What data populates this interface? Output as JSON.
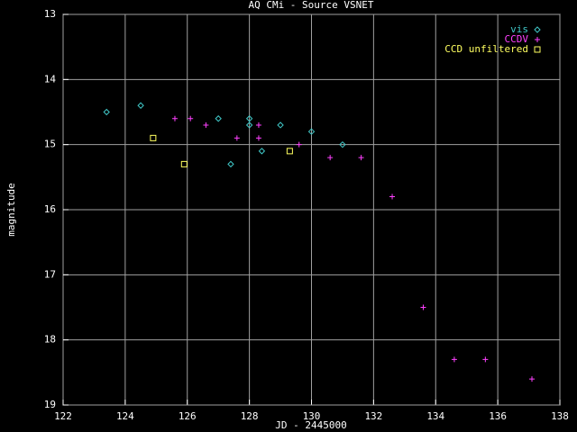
{
  "chart_data": {
    "type": "scatter",
    "title": "AQ CMi - Source VSNET",
    "x_label": "JD - 2445000",
    "y_label": "magnitude",
    "xlim": [
      122,
      138
    ],
    "xticks": [
      122,
      124,
      126,
      128,
      130,
      132,
      134,
      136,
      138
    ],
    "ylim": [
      13,
      19
    ],
    "yticks": [
      13,
      14,
      15,
      16,
      17,
      18,
      19
    ],
    "y_reversed": true,
    "grid": true,
    "legend": "top-right",
    "series": [
      {
        "name": "vis",
        "color": "#40c8c8",
        "marker": "diamond",
        "x": [
          123.4,
          124.5,
          127.0,
          128.0,
          128.0,
          127.4,
          128.4,
          129.0,
          130.0,
          131.0
        ],
        "values": [
          14.5,
          14.4,
          14.6,
          14.6,
          14.7,
          15.3,
          15.1,
          14.7,
          14.8,
          15.0
        ]
      },
      {
        "name": "CCDV",
        "color": "#ff40ff",
        "marker": "plus",
        "x": [
          125.6,
          126.1,
          126.6,
          127.6,
          128.3,
          128.3,
          129.6,
          130.6,
          131.6,
          132.6,
          133.6,
          134.6,
          135.6,
          137.1
        ],
        "values": [
          14.6,
          14.6,
          14.7,
          14.9,
          14.7,
          14.9,
          15.0,
          15.2,
          15.2,
          15.8,
          17.5,
          18.3,
          18.3,
          18.6
        ]
      },
      {
        "name": "CCD unfiltered",
        "color": "#ffff60",
        "marker": "square",
        "x": [
          124.9,
          125.9,
          129.3
        ],
        "values": [
          14.9,
          15.3,
          15.1
        ]
      }
    ]
  }
}
